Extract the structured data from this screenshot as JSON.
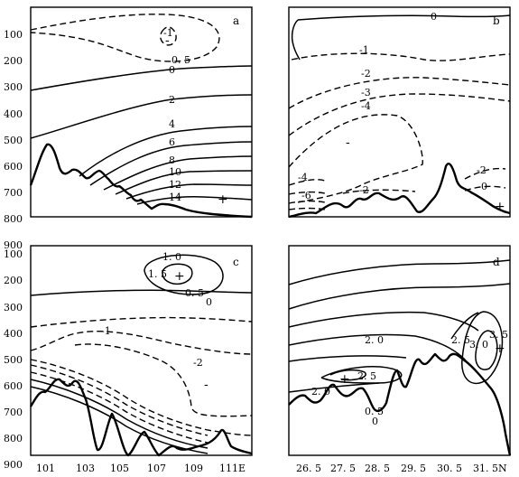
{
  "chart_data": [
    {
      "type": "contour",
      "panel_label": "a",
      "y_ticks": [
        "100",
        "200",
        "300",
        "400",
        "500",
        "600",
        "700",
        "800",
        "900"
      ],
      "x_ticks": [],
      "contour_labels": [
        "-1",
        "0. 5",
        "0",
        "2",
        "4",
        "6",
        "8",
        "10",
        "12",
        "14"
      ],
      "symbols": [
        "-",
        "+"
      ]
    },
    {
      "type": "contour",
      "panel_label": "b",
      "y_ticks": [],
      "x_ticks": [],
      "contour_labels": [
        "0",
        "-1",
        "-2",
        "-3",
        "-4",
        "-2",
        "-4",
        "-6",
        "-2",
        "0"
      ],
      "symbols": [
        "-",
        "+"
      ]
    },
    {
      "type": "contour",
      "panel_label": "c",
      "y_ticks": [
        "100",
        "200",
        "300",
        "400",
        "500",
        "600",
        "700",
        "800",
        "900"
      ],
      "x_ticks": [
        "101",
        "103",
        "105",
        "107",
        "109",
        "111E"
      ],
      "contour_labels": [
        "1. 0",
        "1. 5",
        "0. 5",
        "0",
        "-1",
        "-2"
      ],
      "symbols": [
        "+",
        "-"
      ]
    },
    {
      "type": "contour",
      "panel_label": "d",
      "y_ticks": [],
      "x_ticks": [
        "26. 5",
        "27. 5",
        "28. 5",
        "29. 5",
        "30. 5",
        "31. 5N"
      ],
      "contour_labels": [
        "2. 0",
        "2. 5",
        "2. 0",
        "0. 5",
        "0",
        "2. 5",
        "3. 0",
        "3. 5"
      ],
      "symbols": [
        "+",
        "+"
      ]
    }
  ]
}
